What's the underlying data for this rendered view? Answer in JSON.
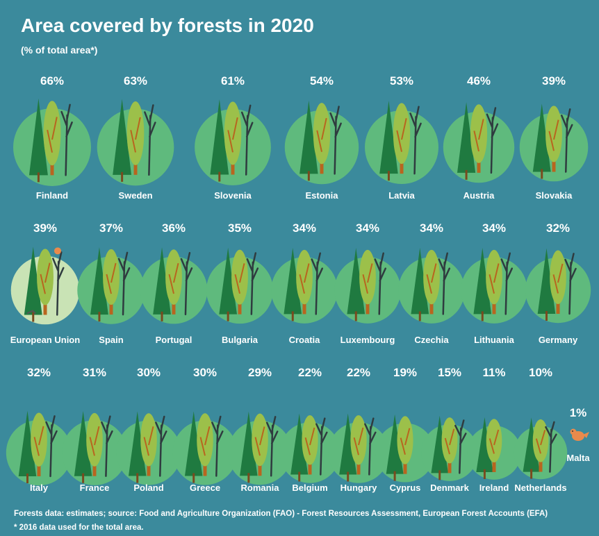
{
  "chart_data": {
    "type": "pictograph",
    "title": "Area covered by forests in 2020",
    "subtitle": "(% of total area*)",
    "unit": "%",
    "categories": [
      "Finland",
      "Sweden",
      "Slovenia",
      "Estonia",
      "Latvia",
      "Austria",
      "Slovakia",
      "European Union",
      "Spain",
      "Portugal",
      "Bulgaria",
      "Croatia",
      "Luxembourg",
      "Czechia",
      "Lithuania",
      "Germany",
      "Italy",
      "France",
      "Poland",
      "Greece",
      "Romania",
      "Belgium",
      "Hungary",
      "Cyprus",
      "Denmark",
      "Ireland",
      "Netherlands",
      "Malta"
    ],
    "values": [
      66,
      63,
      61,
      54,
      53,
      46,
      39,
      39,
      37,
      36,
      35,
      34,
      34,
      34,
      34,
      32,
      32,
      31,
      30,
      30,
      29,
      22,
      22,
      19,
      15,
      11,
      10,
      1
    ],
    "labels": [
      "66%",
      "63%",
      "61%",
      "54%",
      "53%",
      "46%",
      "39%",
      "39%",
      "37%",
      "36%",
      "35%",
      "34%",
      "34%",
      "34%",
      "34%",
      "32%",
      "32%",
      "31%",
      "30%",
      "30%",
      "29%",
      "22%",
      "22%",
      "19%",
      "15%",
      "11%",
      "10%",
      "1%"
    ],
    "highlight": "European Union",
    "colors": {
      "background": "#3b8a9c",
      "circle": "#5fba7d",
      "eu_circle": "#c9e3b5",
      "conifer": "#1f7a40",
      "deciduous": "#9cc04a",
      "trunk": "#b8651f",
      "bare_tree": "#2f3b3f",
      "bird": "#e98a4c"
    }
  },
  "footnotes": {
    "source": "Forests data: estimates; source: Food and Agriculture Organization (FAO) - Forest Resources Assessment, European Forest Accounts (EFA)",
    "note": "* 2016 data used for the total area."
  }
}
